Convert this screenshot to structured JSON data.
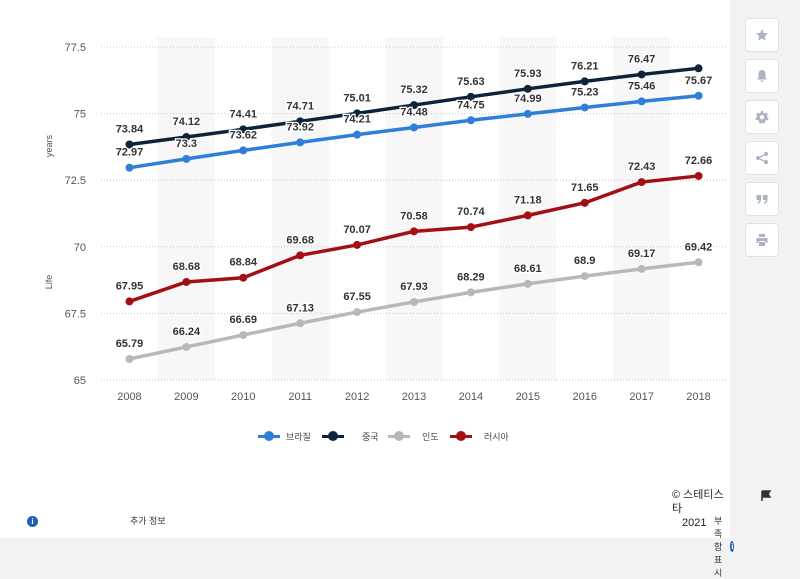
{
  "colors": {
    "brazil": "#2f7ed8",
    "china": "#0d233a",
    "india": "#b8b8b8",
    "russia": "#a30f14",
    "accent": "#1a5fb4"
  },
  "chart_data": {
    "type": "line",
    "title": "",
    "xlabel": "",
    "ylabel_words": [
      "Life",
      "years"
    ],
    "y_ticks": [
      "77.5",
      "75",
      "72.5",
      "70",
      "67.5",
      "65"
    ],
    "y_tick_values": [
      77.5,
      75,
      72.5,
      70,
      67.5,
      65
    ],
    "x_tick_labels": [
      "2008",
      "2009",
      "2010",
      "2011",
      "2012",
      "2013",
      "2014",
      "2015",
      "2016",
      "2017",
      "2018"
    ],
    "ylim": [
      65,
      77.5
    ],
    "grid": true,
    "legend_position": "bottom",
    "x": [
      2008,
      2009,
      2010,
      2011,
      2012,
      2013,
      2014,
      2015,
      2016,
      2017,
      2018
    ],
    "series": [
      {
        "name": "브라질",
        "color": "#2f7ed8",
        "values": [
          72.97,
          73.3,
          73.62,
          73.92,
          74.21,
          74.48,
          74.75,
          74.99,
          75.23,
          75.46,
          75.67
        ],
        "labels": [
          "72.97",
          "73.3",
          "73.62",
          "73.92",
          "74.21",
          "74.48",
          "74.75",
          "74.99",
          "75.23",
          "75.46",
          "75.67"
        ]
      },
      {
        "name": "중국",
        "color": "#0d233a",
        "values": [
          73.84,
          74.12,
          74.41,
          74.71,
          75.01,
          75.32,
          75.63,
          75.93,
          76.21,
          76.47,
          76.7
        ],
        "labels": [
          "73.84",
          "74.12",
          "74.41",
          "74.71",
          "75.01",
          "75.32",
          "75.63",
          "75.93",
          "76.21",
          "76.47",
          ""
        ]
      },
      {
        "name": "인도",
        "color": "#b8b8b8",
        "values": [
          65.79,
          66.24,
          66.69,
          67.13,
          67.55,
          67.93,
          68.29,
          68.61,
          68.9,
          69.17,
          69.42
        ],
        "labels": [
          "65.79",
          "66.24",
          "66.69",
          "67.13",
          "67.55",
          "67.93",
          "68.29",
          "68.61",
          "68.9",
          "69.17",
          "69.42"
        ]
      },
      {
        "name": "러시아",
        "color": "#a30f14",
        "values": [
          67.95,
          68.68,
          68.84,
          69.68,
          70.07,
          70.58,
          70.74,
          71.18,
          71.65,
          72.43,
          72.66
        ],
        "labels": [
          "67.95",
          "68.68",
          "68.84",
          "69.68",
          "70.07",
          "70.58",
          "70.74",
          "71.18",
          "71.65",
          "72.43",
          "72.66"
        ]
      }
    ]
  },
  "legend": [
    "브라질",
    "중국",
    "인도",
    "러시아"
  ],
  "source": {
    "brand": "© 스테티스타",
    "year": "2021"
  },
  "footer": {
    "more_info": "추가 정보",
    "footnote": "부족함 표시"
  },
  "toolbar": {
    "icons": [
      "star-icon",
      "bell-icon",
      "gear-icon",
      "share-icon",
      "quote-icon",
      "print-icon"
    ]
  }
}
